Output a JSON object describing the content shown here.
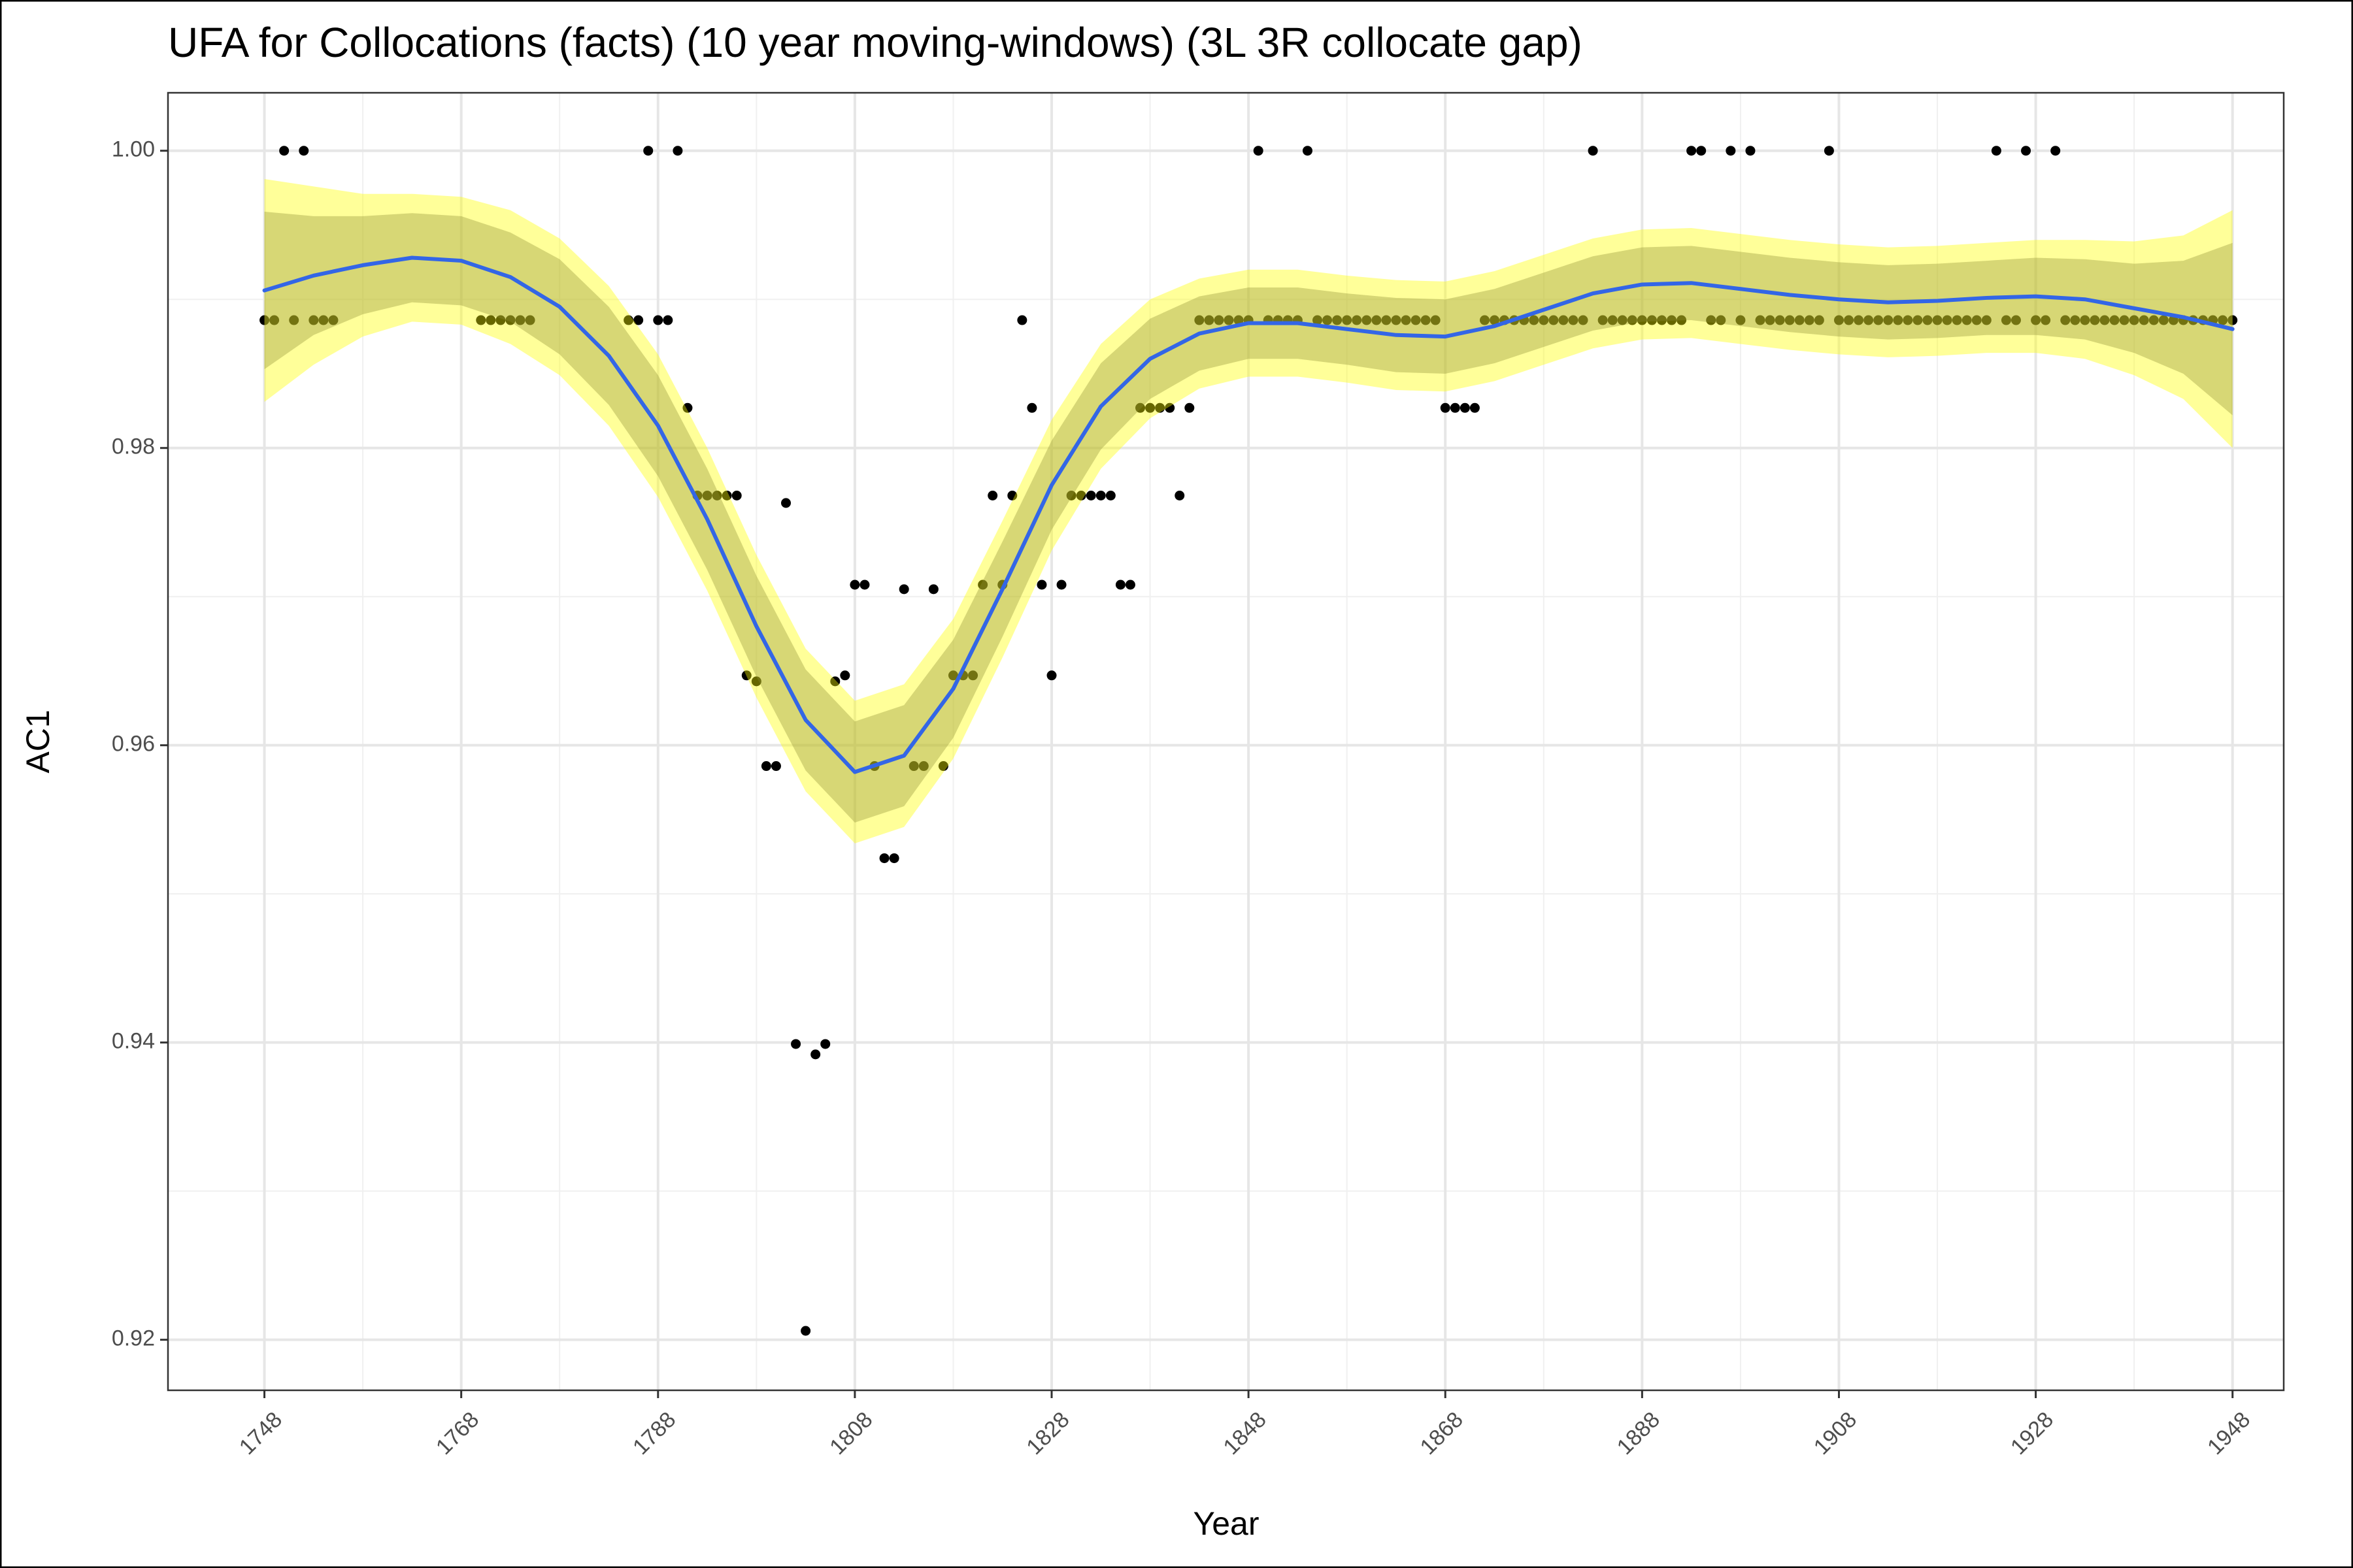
{
  "chart_data": {
    "type": "scatter",
    "title": "UFA for Collocations (facts) (10 year moving-windows) (3L 3R collocate gap)",
    "x_label": "Year",
    "y_label": "AC1",
    "xlim": [
      1738.2,
      1953.2
    ],
    "ylim": [
      0.9166,
      1.0039
    ],
    "xticks": [
      1748,
      1768,
      1788,
      1808,
      1828,
      1848,
      1868,
      1888,
      1908,
      1928,
      1948
    ],
    "yticks": [
      0.92,
      0.94,
      0.96,
      0.98,
      {
        "value": 1,
        "label": "1.00"
      }
    ],
    "grid": true,
    "minor_grid": true,
    "color": "#000000",
    "x": [
      1748,
      1749,
      1750,
      1751,
      1752,
      1753,
      1754,
      1755,
      1770,
      1771,
      1772,
      1773,
      1774,
      1775,
      1785,
      1786,
      1787,
      1788,
      1789,
      1790,
      1791,
      1792,
      1793,
      1794,
      1795,
      1796,
      1797,
      1798,
      1799,
      1800,
      1801,
      1802,
      1803,
      1804,
      1805,
      1806,
      1807,
      1808,
      1809,
      1810,
      1811,
      1812,
      1813,
      1814,
      1815,
      1816,
      1817,
      1818,
      1819,
      1820,
      1821,
      1822,
      1823,
      1824,
      1825,
      1826,
      1827,
      1828,
      1829,
      1830,
      1831,
      1832,
      1833,
      1834,
      1835,
      1836,
      1837,
      1838,
      1839,
      1840,
      1841,
      1842,
      1843,
      1844,
      1845,
      1846,
      1847,
      1848,
      1849,
      1850,
      1851,
      1852,
      1853,
      1854,
      1855,
      1856,
      1857,
      1858,
      1859,
      1860,
      1861,
      1862,
      1863,
      1864,
      1865,
      1866,
      1867,
      1868,
      1869,
      1870,
      1871,
      1872,
      1873,
      1874,
      1875,
      1876,
      1877,
      1878,
      1879,
      1880,
      1881,
      1882,
      1883,
      1884,
      1885,
      1886,
      1887,
      1888,
      1889,
      1890,
      1891,
      1892,
      1893,
      1894,
      1895,
      1896,
      1897,
      1898,
      1899,
      1900,
      1901,
      1902,
      1903,
      1904,
      1905,
      1906,
      1907,
      1908,
      1909,
      1910,
      1911,
      1912,
      1913,
      1914,
      1915,
      1916,
      1917,
      1918,
      1919,
      1920,
      1921,
      1922,
      1923,
      1924,
      1925,
      1926,
      1927,
      1928,
      1929,
      1930,
      1931,
      1932,
      1933,
      1934,
      1935,
      1936,
      1937,
      1938,
      1939,
      1940,
      1941,
      1942,
      1943,
      1944,
      1945,
      1946,
      1947,
      1948
    ],
    "values": [
      0.9886,
      0.9886,
      1,
      0.9886,
      1,
      0.9886,
      0.9886,
      0.9886,
      0.9886,
      0.9886,
      0.9886,
      0.9886,
      0.9886,
      0.9886,
      0.9886,
      0.9886,
      1,
      0.9886,
      0.9886,
      1,
      0.9827,
      0.9768,
      0.9768,
      0.9768,
      0.9768,
      0.9768,
      0.9647,
      0.9643,
      0.9586,
      0.9586,
      0.9763,
      0.9399,
      0.9206,
      0.9392,
      0.9399,
      0.9643,
      0.9647,
      0.9708,
      0.9708,
      0.9586,
      0.9524,
      0.9524,
      0.9705,
      0.9586,
      0.9586,
      0.9705,
      0.9586,
      0.9647,
      0.9647,
      0.9647,
      0.9708,
      0.9768,
      0.9708,
      0.9768,
      0.9886,
      0.9827,
      0.9708,
      0.9647,
      0.9708,
      0.9768,
      0.9768,
      0.9768,
      0.9768,
      0.9768,
      0.9708,
      0.9708,
      0.9827,
      0.9827,
      0.9827,
      0.9827,
      0.9768,
      0.9827,
      0.9886,
      0.9886,
      0.9886,
      0.9886,
      0.9886,
      0.9886,
      1,
      0.9886,
      0.9886,
      0.9886,
      0.9886,
      1,
      0.9886,
      0.9886,
      0.9886,
      0.9886,
      0.9886,
      0.9886,
      0.9886,
      0.9886,
      0.9886,
      0.9886,
      0.9886,
      0.9886,
      0.9886,
      0.9827,
      0.9827,
      0.9827,
      0.9827,
      0.9886,
      0.9886,
      0.9886,
      0.9886,
      0.9886,
      0.9886,
      0.9886,
      0.9886,
      0.9886,
      0.9886,
      0.9886,
      1,
      0.9886,
      0.9886,
      0.9886,
      0.9886,
      0.9886,
      0.9886,
      0.9886,
      0.9886,
      0.9886,
      1,
      1,
      0.9886,
      0.9886,
      1,
      0.9886,
      1,
      0.9886,
      0.9886,
      0.9886,
      0.9886,
      0.9886,
      0.9886,
      0.9886,
      1,
      0.9886,
      0.9886,
      0.9886,
      0.9886,
      0.9886,
      0.9886,
      0.9886,
      0.9886,
      0.9886,
      0.9886,
      0.9886,
      0.9886,
      0.9886,
      0.9886,
      0.9886,
      0.9886,
      1,
      0.9886,
      0.9886,
      1,
      0.9886,
      0.9886,
      1,
      0.9886,
      0.9886,
      0.9886,
      0.9886,
      0.9886,
      0.9886,
      0.9886,
      0.9886,
      0.9886,
      0.9886,
      0.9886,
      0.9886,
      0.9886,
      0.9886,
      0.9886,
      0.9886,
      0.9886,
      0.9886
    ],
    "smooth": {
      "color": "#3366e6",
      "x": [
        1748,
        1753,
        1758,
        1763,
        1768,
        1773,
        1778,
        1783,
        1788,
        1793,
        1798,
        1803,
        1808,
        1813,
        1818,
        1823,
        1828,
        1833,
        1838,
        1843,
        1848,
        1853,
        1858,
        1863,
        1868,
        1873,
        1878,
        1883,
        1888,
        1893,
        1898,
        1903,
        1908,
        1913,
        1918,
        1923,
        1928,
        1933,
        1938,
        1943,
        1948
      ],
      "values": [
        0.9906,
        0.9916,
        0.9923,
        0.9928,
        0.9926,
        0.9915,
        0.9895,
        0.9862,
        0.9815,
        0.9752,
        0.968,
        0.9617,
        0.9582,
        0.9593,
        0.9638,
        0.9705,
        0.9775,
        0.9828,
        0.986,
        0.9877,
        0.9884,
        0.9884,
        0.988,
        0.9876,
        0.9875,
        0.9882,
        0.9893,
        0.9904,
        0.991,
        0.9911,
        0.9907,
        0.9903,
        0.99,
        0.9898,
        0.9899,
        0.9901,
        0.9902,
        0.99,
        0.9894,
        0.9888,
        0.988
      ]
    },
    "bands": [
      {
        "color": "#ffff00",
        "lower": [
          0.9831,
          0.9856,
          0.9875,
          0.9885,
          0.9883,
          0.987,
          0.9849,
          0.9815,
          0.9767,
          0.9704,
          0.9632,
          0.9569,
          0.9534,
          0.9545,
          0.9591,
          0.9659,
          0.9731,
          0.9786,
          0.982,
          0.984,
          0.9848,
          0.9848,
          0.9844,
          0.9839,
          0.9838,
          0.9845,
          0.9856,
          0.9867,
          0.9873,
          0.9874,
          0.987,
          0.9866,
          0.9863,
          0.9861,
          0.9862,
          0.9864,
          0.9864,
          0.986,
          0.9849,
          0.9833,
          0.98
        ],
        "upper": [
          0.9981,
          0.9976,
          0.9971,
          0.9971,
          0.9969,
          0.996,
          0.9941,
          0.9909,
          0.9863,
          0.98,
          0.9728,
          0.9665,
          0.963,
          0.9641,
          0.9685,
          0.9751,
          0.9819,
          0.987,
          0.99,
          0.9914,
          0.992,
          0.992,
          0.9916,
          0.9913,
          0.9912,
          0.9919,
          0.993,
          0.9941,
          0.9947,
          0.9948,
          0.9944,
          0.994,
          0.9937,
          0.9935,
          0.9936,
          0.9938,
          0.994,
          0.994,
          0.9939,
          0.9943,
          0.996
        ]
      },
      {
        "color": "#8c8c33",
        "lower": [
          0.9853,
          0.9876,
          0.989,
          0.9898,
          0.9896,
          0.9885,
          0.9863,
          0.9829,
          0.9781,
          0.9718,
          0.9646,
          0.9583,
          0.9548,
          0.9559,
          0.9605,
          0.9673,
          0.9745,
          0.9799,
          0.9833,
          0.9852,
          0.986,
          0.986,
          0.9856,
          0.9851,
          0.985,
          0.9857,
          0.9868,
          0.9879,
          0.9885,
          0.9886,
          0.9882,
          0.9878,
          0.9875,
          0.9873,
          0.9874,
          0.9876,
          0.9876,
          0.9873,
          0.9864,
          0.985,
          0.9822
        ],
        "upper": [
          0.9959,
          0.9956,
          0.9956,
          0.9958,
          0.9956,
          0.9945,
          0.9927,
          0.9895,
          0.9849,
          0.9786,
          0.9714,
          0.9651,
          0.9616,
          0.9627,
          0.9671,
          0.9737,
          0.9805,
          0.9857,
          0.9887,
          0.9902,
          0.9908,
          0.9908,
          0.9904,
          0.9901,
          0.99,
          0.9907,
          0.9918,
          0.9929,
          0.9935,
          0.9936,
          0.9932,
          0.9928,
          0.9925,
          0.9923,
          0.9924,
          0.9926,
          0.9928,
          0.9927,
          0.9924,
          0.9926,
          0.9938
        ]
      }
    ]
  }
}
